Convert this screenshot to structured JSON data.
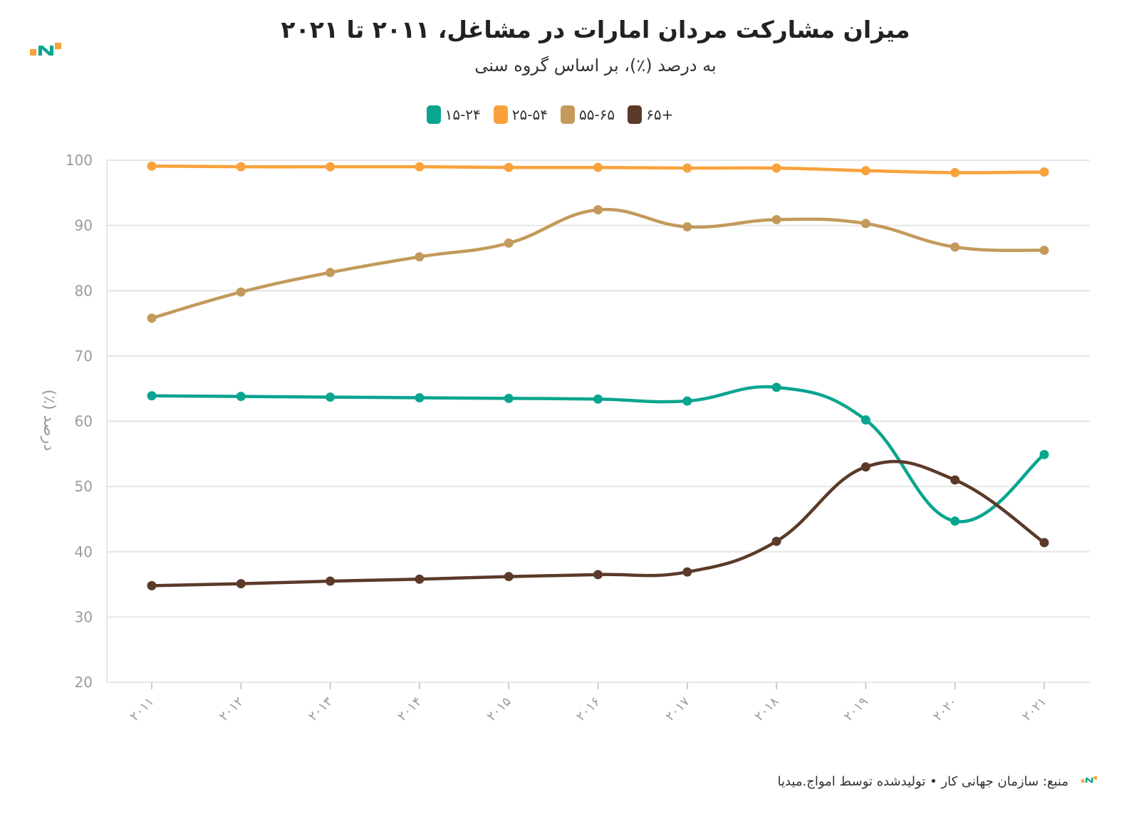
{
  "title": "میزان مشارکت مردان امارات در مشاغل، ۲۰۱۱ تا ۲۰۲۱",
  "subtitle": "به درصد (٪)، بر اساس گروه سنی",
  "footer": "منبع: سازمان جهانی کار • تولیدشده توسط امواج.میدیا",
  "colors": {
    "teal": "#0aa58f",
    "orange": "#f9a23b",
    "tan": "#c39a5c",
    "brown": "#5b3a29",
    "grid": "#e6e6e6",
    "axis_text": "#9b9b9b"
  },
  "chart_data": {
    "type": "line",
    "title": "میزان مشارکت مردان امارات در مشاغل، ۲۰۱۱ تا ۲۰۲۱",
    "subtitle": "به درصد (٪)، بر اساس گروه سنی",
    "xlabel": "",
    "ylabel": "درصد (٪)",
    "ylim": [
      20,
      100
    ],
    "yticks": [
      20,
      30,
      40,
      50,
      60,
      70,
      80,
      90,
      100
    ],
    "grid": true,
    "legend_position": "top-center",
    "categories": [
      "۲۰۱۱",
      "۲۰۱۲",
      "۲۰۱۳",
      "۲۰۱۴",
      "۲۰۱۵",
      "۲۰۱۶",
      "۲۰۱۷",
      "۲۰۱۸",
      "۲۰۱۹",
      "۲۰۲۰",
      "۲۰۲۱"
    ],
    "series": [
      {
        "name": "۱۵-۲۴",
        "color": "#0aa58f",
        "values": [
          63.9,
          63.8,
          63.7,
          63.6,
          63.5,
          63.4,
          63.1,
          65.2,
          60.2,
          44.7,
          54.9
        ]
      },
      {
        "name": "۲۵-۵۴",
        "color": "#f9a23b",
        "values": [
          99.1,
          99.0,
          99.0,
          99.0,
          98.9,
          98.9,
          98.8,
          98.8,
          98.4,
          98.1,
          98.2
        ]
      },
      {
        "name": "۵۵-۶۵",
        "color": "#c39a5c",
        "values": [
          75.8,
          79.8,
          82.8,
          85.2,
          87.3,
          92.4,
          89.8,
          90.9,
          90.3,
          86.7,
          86.2
        ]
      },
      {
        "name": "۶۵+",
        "color": "#5b3a29",
        "values": [
          34.8,
          35.1,
          35.5,
          35.8,
          36.2,
          36.5,
          36.9,
          41.6,
          53.0,
          51.0,
          41.4
        ]
      }
    ]
  }
}
